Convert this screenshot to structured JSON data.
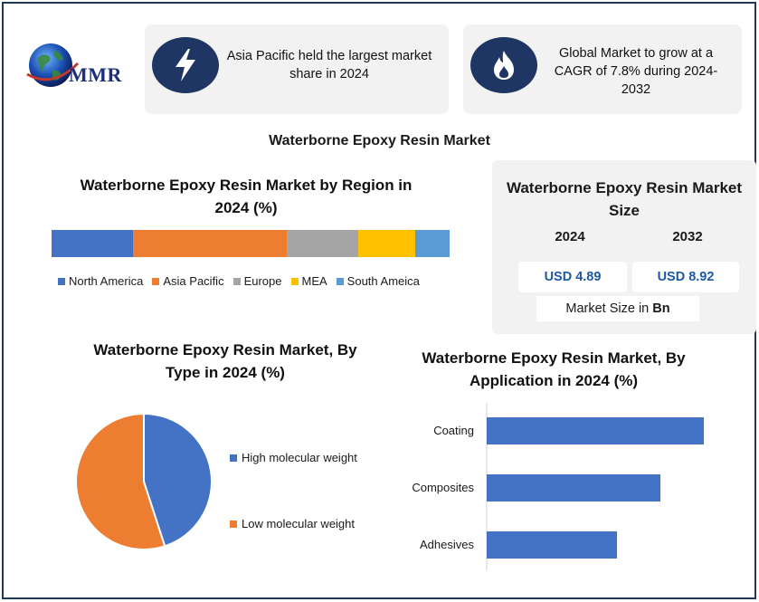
{
  "brand": {
    "logo_text": "MMR"
  },
  "cards": [
    {
      "icon": "lightning-bolt-icon",
      "text": "Asia Pacific held the largest market share in 2024"
    },
    {
      "icon": "flame-icon",
      "text": "Global Market to grow at a CAGR of 7.8% during 2024-2032"
    }
  ],
  "main_title": "Waterborne Epoxy Resin Market",
  "market_size": {
    "title": "Waterborne Epoxy Resin Market Size",
    "year_start": "2024",
    "year_end": "2032",
    "value_start": "USD 4.89",
    "value_end": "USD 8.92",
    "unit_prefix": "Market Size in ",
    "unit_bold": "Bn"
  },
  "colors": {
    "blue": "#4472c4",
    "orange": "#ed7d31",
    "gray": "#a5a5a5",
    "yellow": "#ffc000",
    "lightblue": "#5b9bd5",
    "navy": "#1f3564",
    "value_text": "#1c5aa5"
  },
  "chart_data": [
    {
      "type": "bar",
      "orientation": "horizontal-stacked",
      "title": "Waterborne Epoxy Resin Market by Region in 2024 (%)",
      "series": [
        {
          "name": "North America",
          "values": [
            20.5
          ],
          "color": "#4472c4"
        },
        {
          "name": "Asia Pacific",
          "values": [
            38.5
          ],
          "color": "#ed7d31"
        },
        {
          "name": "Europe",
          "values": [
            18
          ],
          "color": "#a5a5a5"
        },
        {
          "name": "MEA",
          "values": [
            14.3
          ],
          "color": "#ffc000"
        },
        {
          "name": "South Ameica",
          "values": [
            8.7
          ],
          "color": "#5b9bd5"
        }
      ],
      "legend": "bottom"
    },
    {
      "type": "pie",
      "title": "Waterborne Epoxy Resin Market, By Type in 2024 (%)",
      "categories": [
        "High molecular weight",
        "Low molecular weight"
      ],
      "values": [
        45,
        55
      ],
      "colors": [
        "#4472c4",
        "#ed7d31"
      ],
      "legend": "right"
    },
    {
      "type": "bar",
      "orientation": "horizontal",
      "title": "Waterborne Epoxy Resin Market, By Application in 2024 (%)",
      "categories": [
        "Coating",
        "Composites",
        "Adhesives"
      ],
      "values": [
        40,
        32,
        24
      ],
      "xlim": [
        0,
        45
      ],
      "color": "#4472c4",
      "grid": false
    }
  ]
}
